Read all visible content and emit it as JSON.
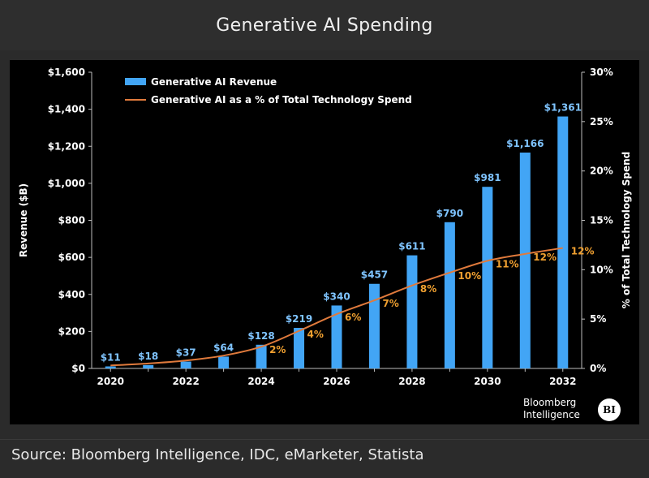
{
  "header": {
    "title": "Generative AI Spending"
  },
  "footer": {
    "source": "Source: Bloomberg Intelligence, IDC, eMarketer, Statista"
  },
  "brand": {
    "line1": "Bloomberg",
    "line2": "Intelligence",
    "logo": "BI"
  },
  "colors": {
    "bar": "#42a5f5",
    "line": "#e07a3c",
    "pct_label": "#f0a030",
    "bar_label": "#7fc4ff"
  },
  "chart_data": {
    "type": "bar+line",
    "categories": [
      2020,
      2021,
      2022,
      2023,
      2024,
      2025,
      2026,
      2027,
      2028,
      2029,
      2030,
      2031,
      2032
    ],
    "x_tick_labels": [
      "2020",
      "2022",
      "2024",
      "2026",
      "2028",
      "2030",
      "2032"
    ],
    "series": [
      {
        "name": "Generative AI Revenue",
        "type": "bar",
        "axis": "left",
        "values": [
          11,
          18,
          37,
          64,
          128,
          219,
          340,
          457,
          611,
          790,
          981,
          1166,
          1361
        ],
        "labels": [
          "$11",
          "$18",
          "$37",
          "$64",
          "$128",
          "$219",
          "$340",
          "$457",
          "$611",
          "$790",
          "$981",
          "$1,166",
          "$1,361"
        ]
      },
      {
        "name": "Generative AI as a % of Total Technology Spend",
        "type": "line",
        "axis": "right",
        "values": [
          0.3,
          0.5,
          0.8,
          1.3,
          2.2,
          3.8,
          5.5,
          6.9,
          8.4,
          9.7,
          10.9,
          11.6,
          12.2
        ],
        "labels": [
          "",
          "",
          "",
          "",
          "2%",
          "4%",
          "6%",
          "7%",
          "8%",
          "10%",
          "11%",
          "12%",
          "12%"
        ]
      }
    ],
    "y_left": {
      "label": "Revenue ($B)",
      "min": 0,
      "max": 1600,
      "ticks": [
        0,
        200,
        400,
        600,
        800,
        1000,
        1200,
        1400,
        1600
      ],
      "tick_labels": [
        "$0",
        "$200",
        "$400",
        "$600",
        "$800",
        "$1,000",
        "$1,200",
        "$1,400",
        "$1,600"
      ]
    },
    "y_right": {
      "label": "% of Total Technology Spend",
      "min": 0,
      "max": 30,
      "ticks": [
        0,
        5,
        10,
        15,
        20,
        25,
        30
      ],
      "tick_labels": [
        "0%",
        "5%",
        "10%",
        "15%",
        "20%",
        "25%",
        "30%"
      ]
    },
    "legend": "top-left",
    "grid": false
  }
}
